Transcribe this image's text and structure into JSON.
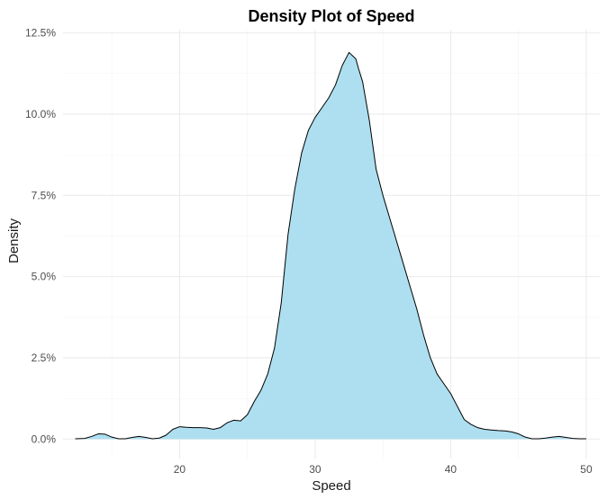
{
  "chart_data": {
    "type": "area",
    "title": "Density Plot of Speed",
    "xlabel": "Speed",
    "ylabel": "Density",
    "xlim": [
      11.4,
      51.0
    ],
    "ylim": [
      -0.006,
      0.126
    ],
    "x_ticks": [
      20,
      30,
      40,
      50
    ],
    "x_tick_labels": [
      "20",
      "30",
      "40",
      "50"
    ],
    "y_ticks": [
      0.0,
      0.025,
      0.05,
      0.075,
      0.1,
      0.125
    ],
    "y_tick_labels": [
      "0.0%",
      "2.5%",
      "5.0%",
      "7.5%",
      "10.0%",
      "12.5%"
    ],
    "grid": true,
    "fill_color": "#ADDFF0",
    "line_color": "#000000",
    "series": [
      {
        "x": [
          12.3,
          13.0,
          13.5,
          14.0,
          14.5,
          15.0,
          15.5,
          16.0,
          16.5,
          17.0,
          17.5,
          18.0,
          18.5,
          19.0,
          19.5,
          20.0,
          20.5,
          21.0,
          21.5,
          22.0,
          22.5,
          23.0,
          23.5,
          24.0,
          24.5,
          25.0,
          25.5,
          26.0,
          26.5,
          27.0,
          27.5,
          28.0,
          28.5,
          29.0,
          29.5,
          30.0,
          30.5,
          31.0,
          31.5,
          32.0,
          32.5,
          33.0,
          33.2,
          33.5,
          34.0,
          34.5,
          35.0,
          35.5,
          36.0,
          36.5,
          37.0,
          37.5,
          38.0,
          38.5,
          39.0,
          39.5,
          40.0,
          40.5,
          41.0,
          41.5,
          42.0,
          42.5,
          43.0,
          43.5,
          44.0,
          44.5,
          45.0,
          45.5,
          46.0,
          46.5,
          47.0,
          47.5,
          48.0,
          48.5,
          49.0,
          49.5,
          50.0
        ],
        "y": [
          0.0001,
          0.0002,
          0.0008,
          0.0016,
          0.0015,
          0.0006,
          0.0001,
          0.0001,
          0.0005,
          0.0008,
          0.0005,
          0.0001,
          0.0003,
          0.0012,
          0.003,
          0.0038,
          0.0036,
          0.0035,
          0.0035,
          0.0034,
          0.003,
          0.0035,
          0.005,
          0.0058,
          0.0056,
          0.0075,
          0.0115,
          0.015,
          0.02,
          0.028,
          0.042,
          0.063,
          0.077,
          0.088,
          0.095,
          0.099,
          0.102,
          0.105,
          0.109,
          0.115,
          0.119,
          0.117,
          0.114,
          0.11,
          0.098,
          0.083,
          0.075,
          0.068,
          0.061,
          0.054,
          0.047,
          0.04,
          0.032,
          0.025,
          0.02,
          0.017,
          0.014,
          0.01,
          0.006,
          0.0045,
          0.0035,
          0.003,
          0.0028,
          0.0026,
          0.0025,
          0.0022,
          0.0016,
          0.0006,
          0.0001,
          0.0001,
          0.0003,
          0.0006,
          0.0008,
          0.0005,
          0.0002,
          0.0001,
          0.0001
        ]
      }
    ]
  }
}
